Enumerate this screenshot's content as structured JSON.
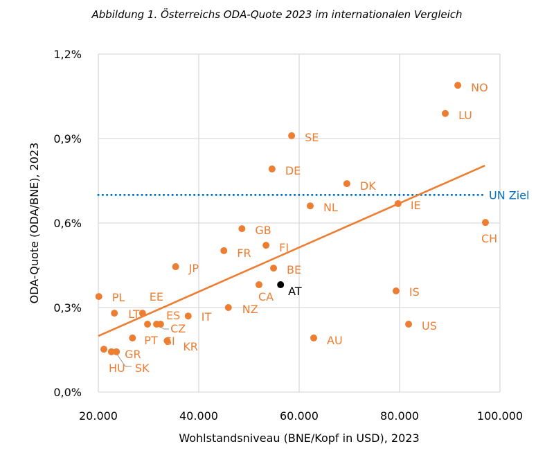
{
  "chart_data": {
    "type": "scatter",
    "title": "Abbildung 1. Österreichs ODA-Quote 2023 im internationalen Vergleich",
    "xlabel": "Wohlstandsniveau (BNE/Kopf in USD), 2023",
    "ylabel": "ODA-Quote (ODA/BNE), 2023",
    "xlim": [
      20000,
      100000
    ],
    "ylim": [
      0,
      1.2
    ],
    "x_ticks": [
      20000,
      40000,
      60000,
      80000,
      100000
    ],
    "x_tick_labels": [
      "20.000",
      "40.000",
      "60.000",
      "80.000",
      "100.000"
    ],
    "y_ticks": [
      0,
      0.3,
      0.6,
      0.9,
      1.2
    ],
    "y_tick_labels": [
      "0,0%",
      "0,3%",
      "0,6%",
      "0,9%",
      "1,2%"
    ],
    "grid": true,
    "colors": {
      "points": "#ED7D31",
      "highlight": "#000000",
      "trend": "#ED7D31",
      "target": "#0070C0",
      "grid": "#D9D9D9"
    },
    "points": [
      {
        "label": "NO",
        "x": 91600,
        "y": 1.089
      },
      {
        "label": "LU",
        "x": 89100,
        "y": 0.989
      },
      {
        "label": "SE",
        "x": 58500,
        "y": 0.91
      },
      {
        "label": "DE",
        "x": 54600,
        "y": 0.792
      },
      {
        "label": "DK",
        "x": 69500,
        "y": 0.74
      },
      {
        "label": "NL",
        "x": 62200,
        "y": 0.661
      },
      {
        "label": "IE",
        "x": 79700,
        "y": 0.669
      },
      {
        "label": "CH",
        "x": 97100,
        "y": 0.602
      },
      {
        "label": "GB",
        "x": 48600,
        "y": 0.58
      },
      {
        "label": "FI",
        "x": 53400,
        "y": 0.521
      },
      {
        "label": "FR",
        "x": 45000,
        "y": 0.502
      },
      {
        "label": "JP",
        "x": 35400,
        "y": 0.445
      },
      {
        "label": "BE",
        "x": 54900,
        "y": 0.44
      },
      {
        "label": "CA",
        "x": 52000,
        "y": 0.381
      },
      {
        "label": "AT",
        "x": 56300,
        "y": 0.381,
        "highlight": true
      },
      {
        "label": "IS",
        "x": 79300,
        "y": 0.359
      },
      {
        "label": "PL",
        "x": 20100,
        "y": 0.339
      },
      {
        "label": "NZ",
        "x": 45900,
        "y": 0.3
      },
      {
        "label": "LT",
        "x": 23200,
        "y": 0.28
      },
      {
        "label": "EE",
        "x": 28800,
        "y": 0.28
      },
      {
        "label": "IT",
        "x": 37900,
        "y": 0.27
      },
      {
        "label": "US",
        "x": 81800,
        "y": 0.241
      },
      {
        "label": "ES",
        "x": 29800,
        "y": 0.241
      },
      {
        "label": "CZ",
        "x": 31600,
        "y": 0.241
      },
      {
        "label": "SI",
        "x": 32400,
        "y": 0.241
      },
      {
        "label": "AU",
        "x": 62900,
        "y": 0.192
      },
      {
        "label": "PT",
        "x": 26800,
        "y": 0.192
      },
      {
        "label": "KR",
        "x": 33700,
        "y": 0.182
      },
      {
        "label": "HU",
        "x": 21100,
        "y": 0.152
      },
      {
        "label": "SK",
        "x": 22600,
        "y": 0.143
      },
      {
        "label": "GR",
        "x": 23600,
        "y": 0.143
      }
    ],
    "trendline": {
      "type": "linear",
      "x": [
        20000,
        97000
      ],
      "y": [
        0.199,
        0.804
      ]
    },
    "target_line": {
      "label": "UN Ziel",
      "y": 0.7
    }
  }
}
